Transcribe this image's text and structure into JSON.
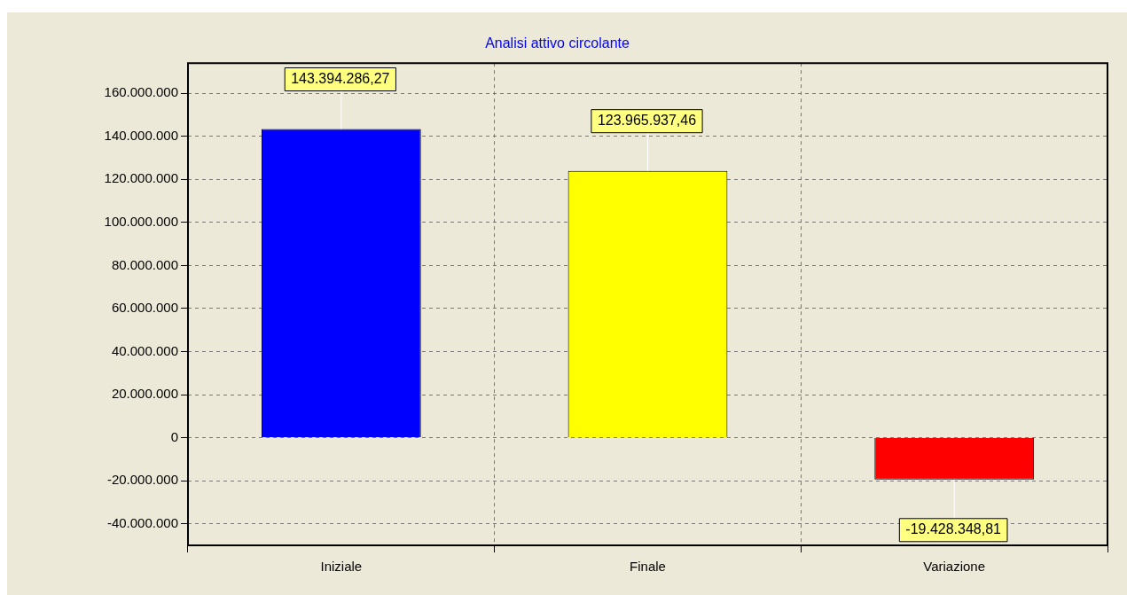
{
  "chart_data": {
    "type": "bar",
    "title": "Analisi attivo circolante",
    "categories": [
      "Iniziale",
      "Finale",
      "Variazione"
    ],
    "values": [
      143394286.27,
      123965937.46,
      -19428348.81
    ],
    "colors": [
      "#0000ff",
      "#ffff00",
      "#ff0000"
    ],
    "value_labels": [
      "143.394.286,27",
      "123.965.937,46",
      "-19.428.348,81"
    ],
    "ylim": [
      -50000000,
      174000000
    ],
    "yticks": [
      {
        "value": -40000000,
        "label": "-40.000.000"
      },
      {
        "value": -20000000,
        "label": "-20.000.000"
      },
      0,
      {
        "value": 20000000,
        "label": "20.000.000"
      },
      {
        "value": 40000000,
        "label": "40.000.000"
      },
      {
        "value": 60000000,
        "label": "60.000.000"
      },
      {
        "value": 80000000,
        "label": "80.000.000"
      },
      {
        "value": 100000000,
        "label": "100.000.000"
      },
      {
        "value": 120000000,
        "label": "120.000.000"
      },
      {
        "value": 140000000,
        "label": "140.000.000"
      },
      {
        "value": 160000000,
        "label": "160.000.000"
      }
    ],
    "grid": true,
    "legend": false
  }
}
